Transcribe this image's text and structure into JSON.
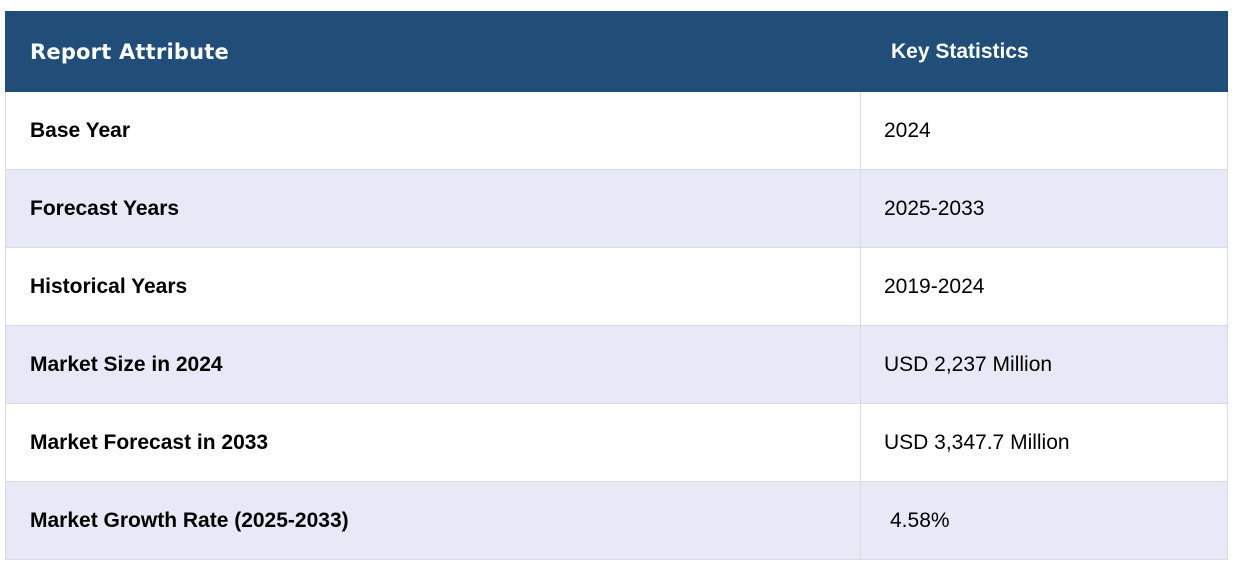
{
  "colors": {
    "header_bg": "#204e79",
    "header_text": "#ffffff",
    "row_alt_bg": "#e7eaf6",
    "row_bg": "#ffffff",
    "border": "#d9dbe3"
  },
  "table": {
    "headers": [
      "Report Attribute",
      "Key Statistics"
    ],
    "rows": [
      {
        "attribute": "Base Year",
        "value": "2024"
      },
      {
        "attribute": "Forecast Years",
        "value": "2025-2033"
      },
      {
        "attribute": "Historical Years",
        "value": "2019-2024"
      },
      {
        "attribute": "Market Size in 2024",
        "value": "USD 2,237 Million"
      },
      {
        "attribute": "Market Forecast in 2033",
        "value": "USD 3,347.7 Million"
      },
      {
        "attribute": "Market Growth Rate (2025-2033)",
        "value": "4.58%"
      }
    ]
  }
}
